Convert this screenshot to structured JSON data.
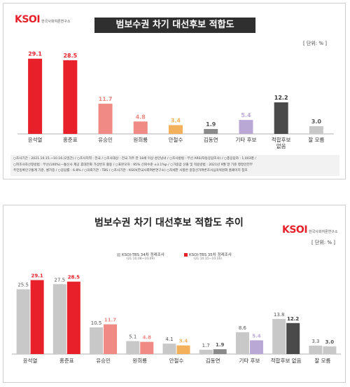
{
  "panel1": {
    "logo": "KSOI",
    "logo_sub": "한국사회여론연구소",
    "title": "범보수권 차기 대선후보 적합도",
    "unit": "[ 단위: % ]",
    "footnote": [
      "○조사기간 : 2021.10.15.~10.16.(2일간) / ○조사지역 : 전국 / ○조사대상 : 전국 거주 만 18세 이상 성인남녀 / ○조사방법 : 무선 ARS(자동응답조사) / ○총응답자 : 1,003명 /",
      "○피조사자선정방법 : 무선(100%)—통신사 제공 휴대전화 가상번호 활용 / ○표본오차 : 95% 신뢰수준 ±3.1%p / ○가중값 산출 및 적용방법 : 2021년 9월 말 기준 행정안전부",
      "주민등록인구통계 기준, 셀가중 / ○응답률 : 6.8% / ○의뢰기관 : TBS / ○조사기관 : KSOI(한국사회여론연구소) ○자세한 사항은 중앙선거여론조사심의위원회 홈페이지 참조"
    ]
  },
  "panel2": {
    "logo": "KSOI",
    "logo_sub": "한국사회여론연구소",
    "title": "범보수권 차기 대선후보 적합도 추이",
    "unit": "[ 단위: % ]",
    "legend": [
      {
        "name": "KSOI-TBS 34차 정례조사",
        "period": "(21.10.08~10.09)",
        "color": "#c8c8c8"
      },
      {
        "name": "KSOI-TBS 35차 정례조사",
        "period": "(21.10.15~10.16)",
        "color": "#e8202a"
      }
    ]
  },
  "chart_data": [
    {
      "type": "bar",
      "title": "범보수권 차기 대선후보 적합도",
      "categories": [
        "윤석열",
        "홍준표",
        "유승민",
        "원희룡",
        "안철수",
        "김동연",
        "기타 후보",
        "적합후보\n없음",
        "잘 모름"
      ],
      "values": [
        29.1,
        28.5,
        11.7,
        4.8,
        3.4,
        1.9,
        5.4,
        12.2,
        3.0
      ],
      "bar_colors": [
        "#e8202a",
        "#e8202a",
        "#f08a85",
        "#f08a85",
        "#f4b15c",
        "#8a8a8a",
        "#b9a8d6",
        "#4a4a4a",
        "#c8c8c8"
      ],
      "label_colors": [
        "#e8202a",
        "#e8202a",
        "#f08a85",
        "#f08a85",
        "#f4b15c",
        "#555555",
        "#b9a8d6",
        "#333333",
        "#555555"
      ],
      "ylim": [
        0,
        32
      ]
    },
    {
      "type": "bar",
      "title": "범보수권 차기 대선후보 적합도 추이",
      "categories": [
        "윤석열",
        "홍준표",
        "유승민",
        "원희룡",
        "안철수",
        "김동연",
        "기타 후보",
        "적합후보 없음",
        "잘 모름"
      ],
      "series": [
        {
          "name": "KSOI-TBS 34차 정례조사",
          "values": [
            25.5,
            27.5,
            10.5,
            5.1,
            4.1,
            1.7,
            8.6,
            13.8,
            3.3
          ]
        },
        {
          "name": "KSOI-TBS 35차 정례조사",
          "values": [
            29.1,
            28.5,
            11.7,
            4.8,
            3.4,
            1.9,
            5.4,
            12.2,
            3.0
          ]
        }
      ],
      "series1_colors": [
        "#c8c8c8",
        "#c8c8c8",
        "#c8c8c8",
        "#c8c8c8",
        "#c8c8c8",
        "#c8c8c8",
        "#c8c8c8",
        "#c8c8c8",
        "#c8c8c8"
      ],
      "series2_colors": [
        "#e8202a",
        "#e8202a",
        "#f08a85",
        "#f08a85",
        "#f4b15c",
        "#8a8a8a",
        "#b9a8d6",
        "#4a4a4a",
        "#c8c8c8"
      ],
      "series2_label_colors": [
        "#e8202a",
        "#e8202a",
        "#f08a85",
        "#f08a85",
        "#f4b15c",
        "#555555",
        "#b9a8d6",
        "#333333",
        "#555555"
      ],
      "ylim": [
        0,
        32
      ]
    }
  ]
}
